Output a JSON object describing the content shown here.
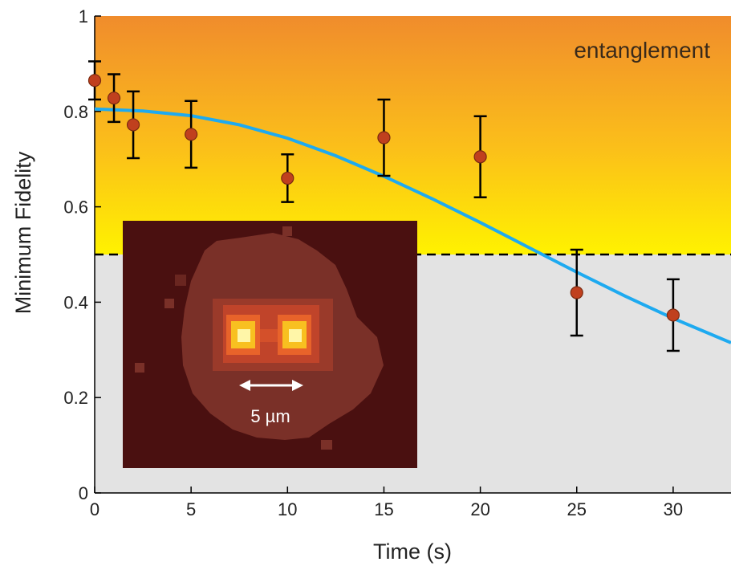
{
  "chart_data": {
    "type": "scatter",
    "xlabel": "Time (s)",
    "ylabel": "Minimum Fidelity",
    "xlim": [
      0,
      33
    ],
    "ylim": [
      0,
      1
    ],
    "x_ticks": [
      "0",
      "5",
      "10",
      "15",
      "20",
      "25",
      "30"
    ],
    "y_ticks": [
      "0",
      "0.2",
      "0.4",
      "0.6",
      "0.8",
      "1"
    ],
    "grid": false,
    "series": [
      {
        "kind": "points_with_error_bars",
        "color": "#c0401e",
        "points": [
          {
            "x": 0,
            "y": 0.865,
            "err_low": 0.04,
            "err_high": 0.04
          },
          {
            "x": 1,
            "y": 0.828,
            "err_low": 0.05,
            "err_high": 0.05
          },
          {
            "x": 2,
            "y": 0.772,
            "err_low": 0.07,
            "err_high": 0.07
          },
          {
            "x": 5,
            "y": 0.752,
            "err_low": 0.07,
            "err_high": 0.07
          },
          {
            "x": 10,
            "y": 0.66,
            "err_low": 0.05,
            "err_high": 0.05
          },
          {
            "x": 15,
            "y": 0.745,
            "err_low": 0.08,
            "err_high": 0.08
          },
          {
            "x": 20,
            "y": 0.705,
            "err_low": 0.085,
            "err_high": 0.085
          },
          {
            "x": 25,
            "y": 0.42,
            "err_low": 0.09,
            "err_high": 0.09
          },
          {
            "x": 30,
            "y": 0.373,
            "err_low": 0.075,
            "err_high": 0.075
          }
        ]
      },
      {
        "kind": "fit_curve",
        "color": "#1eaaf0",
        "x": [
          0,
          2.5,
          5,
          7.5,
          10,
          12.5,
          15,
          17.5,
          20,
          22.5,
          25,
          27.5,
          30,
          33
        ],
        "y": [
          0.805,
          0.801,
          0.791,
          0.772,
          0.744,
          0.707,
          0.664,
          0.617,
          0.567,
          0.515,
          0.463,
          0.413,
          0.366,
          0.315
        ]
      }
    ],
    "threshold": {
      "y": 0.5,
      "style": "dashed",
      "color": "#000000"
    },
    "regions": [
      {
        "label": "entanglement",
        "from": 0.5,
        "to": 1,
        "colors": [
          "#fff200",
          "#f08c2c"
        ]
      },
      {
        "from": 0,
        "to": 0.5,
        "color": "#e3e3e3"
      }
    ],
    "annotation": "entanglement",
    "inset": {
      "scale_label": "5 µm",
      "background": "#4a1010",
      "halo": "#7a3028"
    }
  }
}
